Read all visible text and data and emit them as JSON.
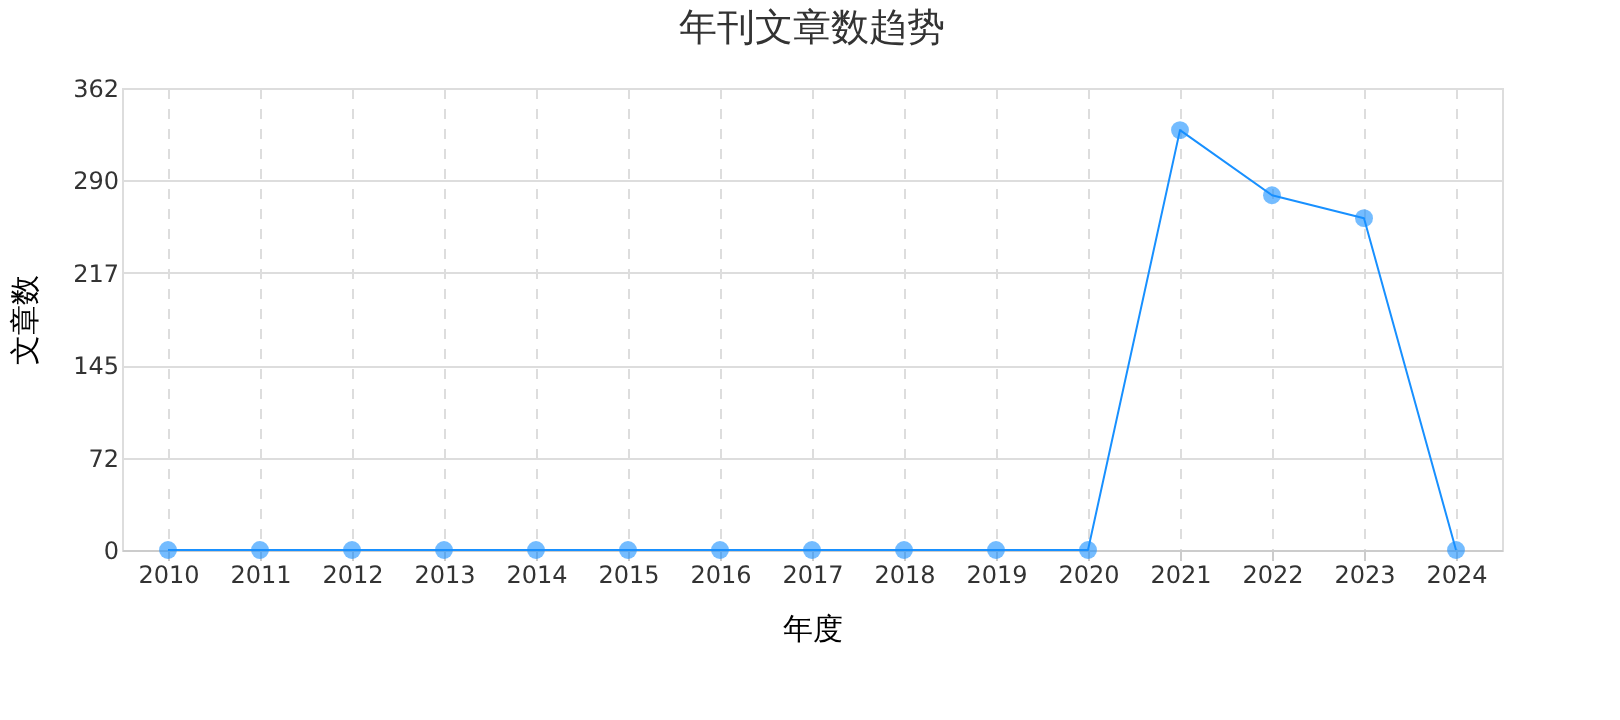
{
  "chart_data": {
    "type": "line",
    "title": "年刊文章数趋势",
    "xlabel": "年度",
    "ylabel": "文章数",
    "categories": [
      "2010",
      "2011",
      "2012",
      "2013",
      "2014",
      "2015",
      "2016",
      "2017",
      "2018",
      "2019",
      "2020",
      "2021",
      "2022",
      "2023",
      "2024"
    ],
    "series": [
      {
        "color": "#1890ff",
        "values": [
          0,
          0,
          0,
          0,
          0,
          0,
          0,
          0,
          0,
          0,
          0,
          329,
          278,
          260,
          0
        ]
      }
    ],
    "ylim": [
      0,
      362
    ],
    "yticks": [
      0,
      {
        "value": 72.4,
        "label": "72"
      },
      {
        "value": 144.8,
        "label": "145"
      },
      {
        "value": 217.2,
        "label": "217"
      },
      {
        "value": 289.6,
        "label": "290"
      },
      362
    ],
    "grid": true,
    "marker": "circle",
    "line_style": "solid"
  }
}
